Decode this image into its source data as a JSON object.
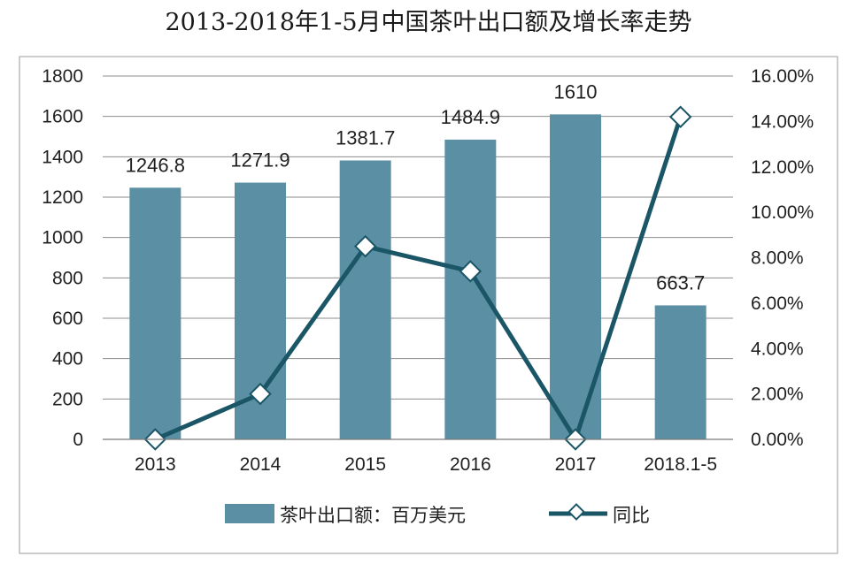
{
  "chart_data": {
    "type": "bar",
    "title": "2013-2018年1-5月中国茶叶出口额及增长率走势",
    "categories": [
      "2013",
      "2014",
      "2015",
      "2016",
      "2017",
      "2018.1-5"
    ],
    "series": [
      {
        "name": "茶叶出口额：百万美元",
        "type": "bar",
        "axis": "left",
        "values": [
          1246.8,
          1271.9,
          1381.7,
          1484.9,
          1610,
          663.7
        ],
        "value_labels": [
          "1246.8",
          "1271.9",
          "1381.7",
          "1484.9",
          "1610",
          "663.7"
        ],
        "color": "#5b8fa4"
      },
      {
        "name": "同比",
        "type": "line",
        "axis": "right",
        "values": [
          0.0,
          2.0,
          8.5,
          7.4,
          0.0,
          14.2
        ],
        "color": "#1b5667"
      }
    ],
    "y_left": {
      "ylim": [
        0,
        1800
      ],
      "ticks": [
        "0",
        "200",
        "400",
        "600",
        "800",
        "1000",
        "1200",
        "1400",
        "1600",
        "1800"
      ]
    },
    "y_right": {
      "ylim": [
        0,
        16
      ],
      "ticks": [
        "0.00%",
        "2.00%",
        "4.00%",
        "6.00%",
        "8.00%",
        "10.00%",
        "12.00%",
        "14.00%",
        "16.00%"
      ]
    },
    "grid": true,
    "legend_position": "bottom"
  }
}
